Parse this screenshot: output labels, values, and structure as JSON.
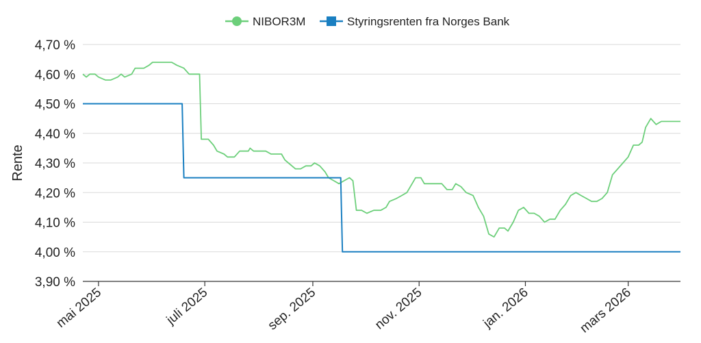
{
  "chart_data": {
    "type": "line",
    "ylabel": "Rente",
    "ylim": [
      3.9,
      4.7
    ],
    "yticks": [
      3.9,
      4.0,
      4.1,
      4.2,
      4.3,
      4.4,
      4.5,
      4.6,
      4.7
    ],
    "ytick_labels": [
      "3,90 %",
      "4,00 %",
      "4,10 %",
      "4,20 %",
      "4,30 %",
      "4,40 %",
      "4,50 %",
      "4,60 %",
      "4,70 %"
    ],
    "xlim": [
      "2025-04-22",
      "2026-03-31"
    ],
    "xticks": [
      "2025-05-01",
      "2025-07-01",
      "2025-09-01",
      "2025-11-01",
      "2026-01-01",
      "2026-03-01"
    ],
    "xtick_labels": [
      "mai 2025",
      "juli 2025",
      "sep. 2025",
      "nov. 2025",
      "jan. 2026",
      "mars 2026"
    ],
    "grid": "horizontal",
    "legend_position": "top-center",
    "series": [
      {
        "name": "NIBOR3M",
        "color": "#6ccf7a",
        "marker": "circle",
        "points": [
          [
            "2025-04-22",
            4.6
          ],
          [
            "2025-04-24",
            4.59
          ],
          [
            "2025-04-26",
            4.6
          ],
          [
            "2025-04-29",
            4.6
          ],
          [
            "2025-05-01",
            4.59
          ],
          [
            "2025-05-05",
            4.58
          ],
          [
            "2025-05-08",
            4.58
          ],
          [
            "2025-05-12",
            4.59
          ],
          [
            "2025-05-14",
            4.6
          ],
          [
            "2025-05-16",
            4.59
          ],
          [
            "2025-05-20",
            4.6
          ],
          [
            "2025-05-22",
            4.62
          ],
          [
            "2025-05-27",
            4.62
          ],
          [
            "2025-05-30",
            4.63
          ],
          [
            "2025-06-01",
            4.64
          ],
          [
            "2025-06-12",
            4.64
          ],
          [
            "2025-06-15",
            4.63
          ],
          [
            "2025-06-19",
            4.62
          ],
          [
            "2025-06-22",
            4.6
          ],
          [
            "2025-06-28",
            4.6
          ],
          [
            "2025-06-29",
            4.38
          ],
          [
            "2025-07-03",
            4.38
          ],
          [
            "2025-07-06",
            4.36
          ],
          [
            "2025-07-08",
            4.34
          ],
          [
            "2025-07-12",
            4.33
          ],
          [
            "2025-07-14",
            4.32
          ],
          [
            "2025-07-18",
            4.32
          ],
          [
            "2025-07-21",
            4.34
          ],
          [
            "2025-07-26",
            4.34
          ],
          [
            "2025-07-27",
            4.35
          ],
          [
            "2025-07-29",
            4.34
          ],
          [
            "2025-08-05",
            4.34
          ],
          [
            "2025-08-08",
            4.33
          ],
          [
            "2025-08-14",
            4.33
          ],
          [
            "2025-08-16",
            4.31
          ],
          [
            "2025-08-18",
            4.3
          ],
          [
            "2025-08-22",
            4.28
          ],
          [
            "2025-08-25",
            4.28
          ],
          [
            "2025-08-28",
            4.29
          ],
          [
            "2025-08-31",
            4.29
          ],
          [
            "2025-09-02",
            4.3
          ],
          [
            "2025-09-05",
            4.29
          ],
          [
            "2025-09-08",
            4.27
          ],
          [
            "2025-09-10",
            4.25
          ],
          [
            "2025-09-13",
            4.24
          ],
          [
            "2025-09-16",
            4.23
          ],
          [
            "2025-09-19",
            4.24
          ],
          [
            "2025-09-22",
            4.25
          ],
          [
            "2025-09-24",
            4.24
          ],
          [
            "2025-09-26",
            4.14
          ],
          [
            "2025-09-29",
            4.14
          ],
          [
            "2025-10-02",
            4.13
          ],
          [
            "2025-10-06",
            4.14
          ],
          [
            "2025-10-10",
            4.14
          ],
          [
            "2025-10-13",
            4.15
          ],
          [
            "2025-10-15",
            4.17
          ],
          [
            "2025-10-19",
            4.18
          ],
          [
            "2025-10-22",
            4.19
          ],
          [
            "2025-10-25",
            4.2
          ],
          [
            "2025-10-27",
            4.22
          ],
          [
            "2025-10-30",
            4.25
          ],
          [
            "2025-11-02",
            4.25
          ],
          [
            "2025-11-04",
            4.23
          ],
          [
            "2025-11-08",
            4.23
          ],
          [
            "2025-11-14",
            4.23
          ],
          [
            "2025-11-17",
            4.21
          ],
          [
            "2025-11-20",
            4.21
          ],
          [
            "2025-11-22",
            4.23
          ],
          [
            "2025-11-25",
            4.22
          ],
          [
            "2025-11-28",
            4.2
          ],
          [
            "2025-12-02",
            4.19
          ],
          [
            "2025-12-05",
            4.15
          ],
          [
            "2025-12-08",
            4.12
          ],
          [
            "2025-12-11",
            4.06
          ],
          [
            "2025-12-14",
            4.05
          ],
          [
            "2025-12-17",
            4.08
          ],
          [
            "2025-12-20",
            4.08
          ],
          [
            "2025-12-22",
            4.07
          ],
          [
            "2025-12-25",
            4.1
          ],
          [
            "2025-12-28",
            4.14
          ],
          [
            "2025-12-31",
            4.15
          ],
          [
            "2026-01-03",
            4.13
          ],
          [
            "2026-01-06",
            4.13
          ],
          [
            "2026-01-09",
            4.12
          ],
          [
            "2026-01-12",
            4.1
          ],
          [
            "2026-01-15",
            4.11
          ],
          [
            "2026-01-18",
            4.11
          ],
          [
            "2026-01-21",
            4.14
          ],
          [
            "2026-01-24",
            4.16
          ],
          [
            "2026-01-27",
            4.19
          ],
          [
            "2026-01-30",
            4.2
          ],
          [
            "2026-02-02",
            4.19
          ],
          [
            "2026-02-05",
            4.18
          ],
          [
            "2026-02-08",
            4.17
          ],
          [
            "2026-02-11",
            4.17
          ],
          [
            "2026-02-14",
            4.18
          ],
          [
            "2026-02-17",
            4.2
          ],
          [
            "2026-02-20",
            4.26
          ],
          [
            "2026-02-23",
            4.28
          ],
          [
            "2026-02-26",
            4.3
          ],
          [
            "2026-03-01",
            4.32
          ],
          [
            "2026-03-04",
            4.36
          ],
          [
            "2026-03-07",
            4.36
          ],
          [
            "2026-03-09",
            4.37
          ],
          [
            "2026-03-11",
            4.42
          ],
          [
            "2026-03-14",
            4.45
          ],
          [
            "2026-03-17",
            4.43
          ],
          [
            "2026-03-20",
            4.44
          ],
          [
            "2026-03-31",
            4.44
          ]
        ]
      },
      {
        "name": "Styringsrenten fra Norges Bank",
        "color": "#1a7fc1",
        "marker": "square",
        "points": [
          [
            "2025-04-22",
            4.5
          ],
          [
            "2025-06-18",
            4.5
          ],
          [
            "2025-06-19",
            4.25
          ],
          [
            "2025-09-17",
            4.25
          ],
          [
            "2025-09-18",
            4.0
          ],
          [
            "2026-03-31",
            4.0
          ]
        ]
      }
    ]
  }
}
